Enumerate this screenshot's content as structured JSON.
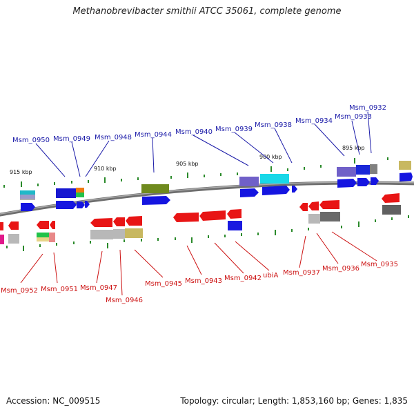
{
  "title": "Methanobrevibacter smithii ATCC 35061, complete genome",
  "footer": {
    "accession": "Accession: NC_009515",
    "topology": "Topology: circular; Length: 1,853,160 bp; Genes: 1,835"
  },
  "colors": {
    "forward_label": "#1a1aa8",
    "reverse_label": "#cc1111",
    "tick": "#2a8a2a",
    "backbone": "#777777"
  },
  "scale": [
    "915 kbp",
    "910 kbp",
    "905 kbp",
    "900 kbp",
    "895 kbp"
  ],
  "forward_genes": [
    "Msm_0950",
    "Msm_0949",
    "Msm_0948",
    "Msm_0944",
    "Msm_0940",
    "Msm_0939",
    "Msm_0938",
    "Msm_0934",
    "Msm_0933",
    "Msm_0932"
  ],
  "reverse_genes": [
    "Msm_0952",
    "Msm_0951",
    "Msm_0947",
    "Msm_0946",
    "Msm_0945",
    "Msm_0943",
    "Msm_0942",
    "ubiA",
    "Msm_0937",
    "Msm_0936",
    "Msm_0935"
  ]
}
